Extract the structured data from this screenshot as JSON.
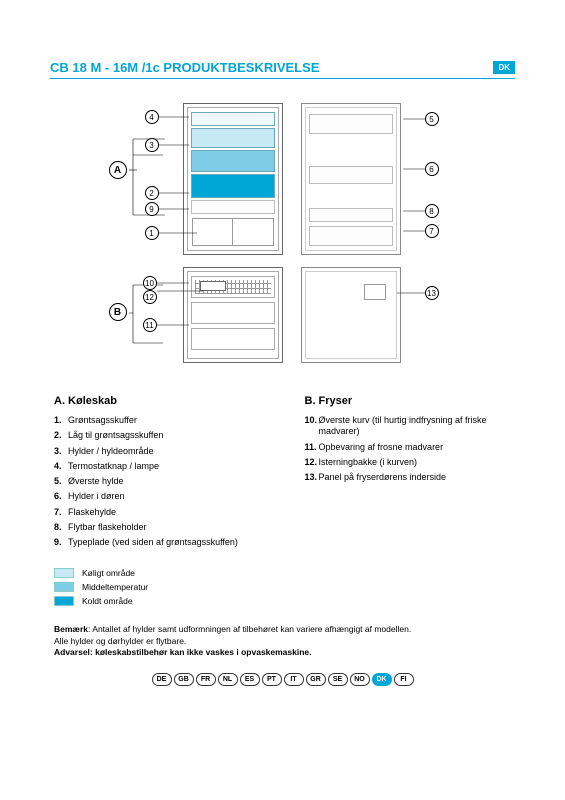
{
  "header": {
    "title": "CB 18 M - 16M /1c   PRODUKTBESKRIVELSE",
    "badge": "DK"
  },
  "diagram": {
    "section_a_label": "A",
    "section_b_label": "B",
    "callouts_left_top": [
      "4",
      "3",
      "2",
      "9",
      "1"
    ],
    "callouts_left_bottom": [
      "10",
      "12",
      "11"
    ],
    "callouts_right_top": [
      "5",
      "6",
      "8",
      "7"
    ],
    "callouts_right_bottom": [
      "13"
    ],
    "colors": {
      "cool": "#c7e8f5",
      "mid": "#7fcce6",
      "cold": "#00a6d6"
    }
  },
  "section_a": {
    "heading": "A.    Køleskab",
    "items": [
      "Grøntsagsskuffer",
      "Låg til grøntsagsskuffen",
      "Hylder / hyldeområde",
      "Termostatknap / lampe",
      "Øverste hylde",
      "Hylder i døren",
      "Flaskehylde",
      "Flytbar flaskeholder",
      "Typeplade (ved siden af grøntsagsskuffen)"
    ]
  },
  "section_b": {
    "heading": "B.    Fryser",
    "items": [
      {
        "n": "10.",
        "t": "Øverste kurv (til hurtig indfrysning af friske madvarer)"
      },
      {
        "n": "11.",
        "t": "Opbevaring af frosne madvarer"
      },
      {
        "n": "12.",
        "t": "Isterningbakke (i kurven)"
      },
      {
        "n": "13.",
        "t": "Panel på fryserdørens inderside"
      }
    ]
  },
  "legend": {
    "rows": [
      {
        "label": "Køligt område",
        "color": "#c7e8f5"
      },
      {
        "label": "Middeltemperatur",
        "color": "#7fcce6"
      },
      {
        "label": "Koldt område",
        "color": "#00a6d6"
      }
    ]
  },
  "notes": {
    "line1a": "Bemærk",
    "line1b": ": Antallet af hylder samt udformningen af tilbehøret kan variere afhængigt af modellen.",
    "line2": "Alle hylder og dørhylder er flytbare.",
    "line3a": "Advarsel: køleskabstilbehør kan ikke vaskes i opvaskemaskine."
  },
  "countries": [
    "DE",
    "GB",
    "FR",
    "NL",
    "ES",
    "PT",
    "IT",
    "GR",
    "SE",
    "NO",
    "DK",
    "FI"
  ],
  "active_country_index": 10
}
